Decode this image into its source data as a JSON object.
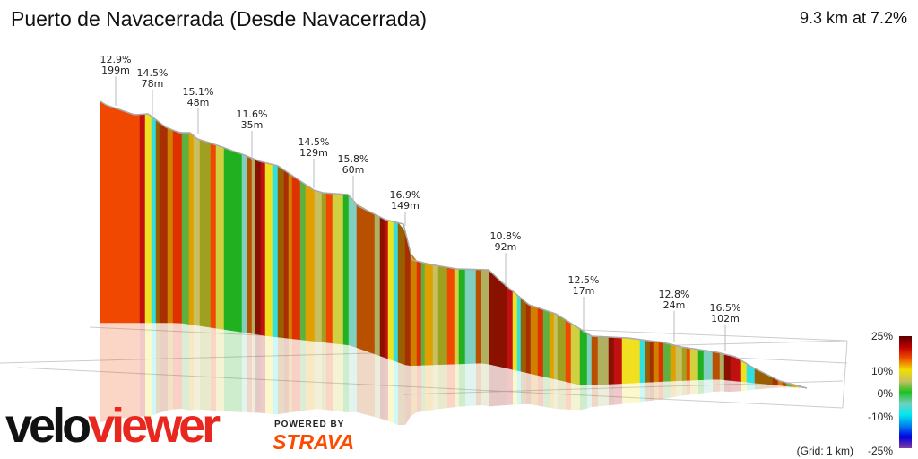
{
  "chart_data": {
    "type": "area",
    "title": "Puerto de Navacerrada (Desde Navacerrada)",
    "subtitle": "9.3 km at 7.2%",
    "annotations": [
      {
        "gradient": "12.9%",
        "length": "199m"
      },
      {
        "gradient": "14.5%",
        "length": "78m"
      },
      {
        "gradient": "15.1%",
        "length": "48m"
      },
      {
        "gradient": "11.6%",
        "length": "35m"
      },
      {
        "gradient": "14.5%",
        "length": "129m"
      },
      {
        "gradient": "15.8%",
        "length": "60m"
      },
      {
        "gradient": "16.9%",
        "length": "149m"
      },
      {
        "gradient": "10.8%",
        "length": "92m"
      },
      {
        "gradient": "12.5%",
        "length": "17m"
      },
      {
        "gradient": "12.8%",
        "length": "24m"
      },
      {
        "gradient": "16.5%",
        "length": "102m"
      }
    ],
    "legend": {
      "ticks": [
        "25%",
        "10%",
        "0%",
        "-10%",
        "-25%"
      ],
      "grid_note": "(Grid: 1 km)",
      "colors": [
        "#5a0000",
        "#c00000",
        "#f05000",
        "#f0e000",
        "#c8c060",
        "#20c020",
        "#70d0c0",
        "#00e8f0",
        "#0080f0",
        "#0000e0",
        "#8040a0"
      ]
    }
  },
  "branding": {
    "velo": "velo",
    "viewer": "viewer",
    "powered_by": "POWERED BY",
    "strava": "STRAVA"
  }
}
